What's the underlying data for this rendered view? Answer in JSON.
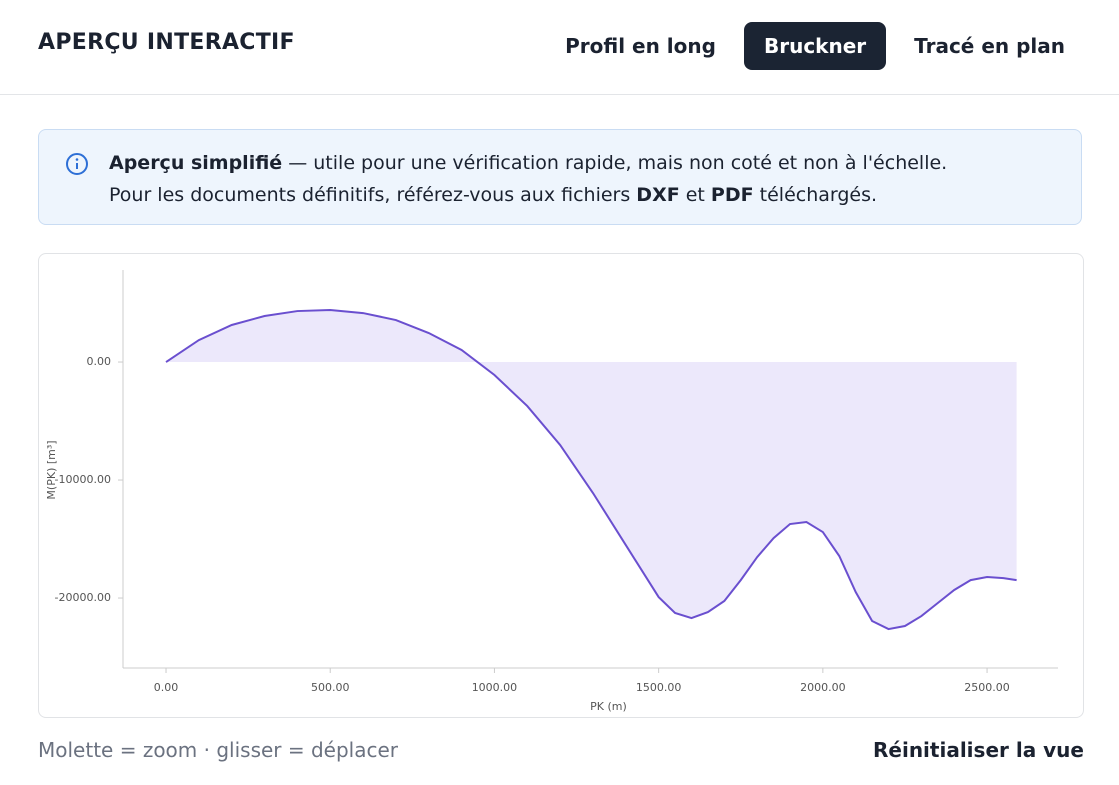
{
  "header": {
    "title": "APERÇU INTERACTIF",
    "tabs": [
      "Profil en long",
      "Bruckner",
      "Tracé en plan"
    ],
    "active_tab": 1
  },
  "info": {
    "line1": [
      "Aperçu simplifié",
      " — utile pour une vérification rapide, mais non coté et non à l'échelle."
    ],
    "line2": [
      "Pour les documents définitifs, référez-vous aux fichiers ",
      "DXF",
      " et ",
      "PDF",
      " téléchargés."
    ]
  },
  "chart_data": {
    "type": "area",
    "x_label": "PK (m)",
    "y_label": "M(PK) [m³]",
    "color": "#6a4fcf",
    "fill": "#ece8fb",
    "x": [
      0,
      100,
      200,
      300,
      400,
      500,
      600,
      700,
      800,
      900,
      1000,
      1100,
      1200,
      1300,
      1400,
      1500,
      1550,
      1600,
      1650,
      1700,
      1750,
      1800,
      1850,
      1900,
      1950,
      2000,
      2050,
      2100,
      2150,
      2200,
      2250,
      2300,
      2350,
      2400,
      2450,
      2500,
      2550,
      2590
    ],
    "values": [
      0,
      1860,
      3140,
      3900,
      4320,
      4410,
      4150,
      3560,
      2460,
      1020,
      -1100,
      -3730,
      -7030,
      -11100,
      -15510,
      -19920,
      -21270,
      -21700,
      -21190,
      -20250,
      -18480,
      -16530,
      -14920,
      -13730,
      -13560,
      -14410,
      -16440,
      -19490,
      -21950,
      -22630,
      -22370,
      -21530,
      -20420,
      -19320,
      -18480,
      -18220,
      -18310,
      -18480
    ],
    "xlim": [
      -131,
      2716
    ],
    "ylim": [
      -25930,
      7800
    ],
    "xticks": [
      {
        "value": 0,
        "label": "0.00"
      },
      {
        "value": 500,
        "label": "500.00"
      },
      {
        "value": 1000,
        "label": "1000.00"
      },
      {
        "value": 1500,
        "label": "1500.00"
      },
      {
        "value": 2000,
        "label": "2000.00"
      },
      {
        "value": 2500,
        "label": "2500.00"
      }
    ],
    "yticks": [
      {
        "value": 0,
        "label": "0.00"
      },
      {
        "value": -10000,
        "label": "-10000.00"
      },
      {
        "value": -20000,
        "label": "-20000.00"
      }
    ],
    "grid": false
  },
  "footer": {
    "hint": "Molette = zoom · glisser = déplacer",
    "reset": "Réinitialiser la vue"
  }
}
